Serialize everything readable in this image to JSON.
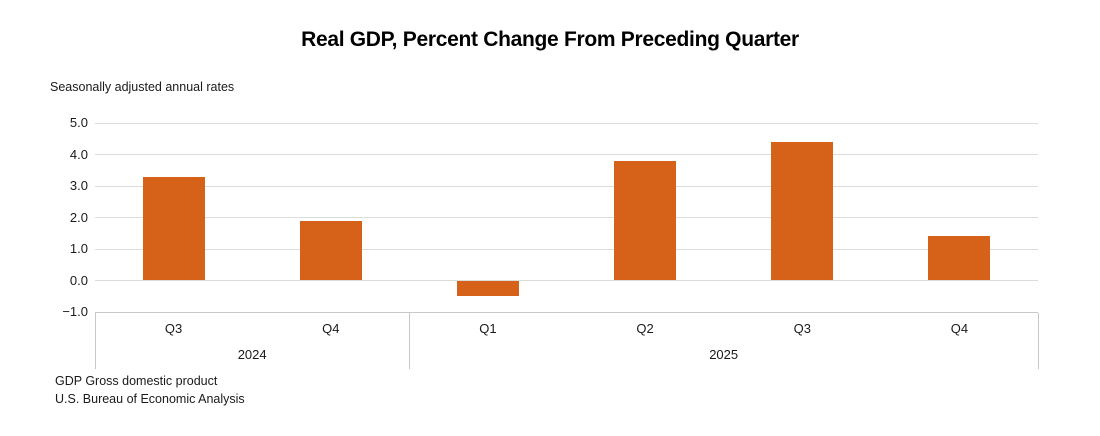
{
  "title": "Real GDP, Percent Change From Preceding Quarter",
  "subtitle": "Seasonally adjusted annual rates",
  "footer": {
    "line1": "GDP Gross domestic product",
    "line2": "U.S. Bureau of Economic Analysis"
  },
  "colors": {
    "bar": "#d6621a",
    "gridline": "#dcdcdc",
    "axis_line": "#c8c8c8",
    "text": "#1a1a1a"
  },
  "chart_data": {
    "type": "bar",
    "title": "Real GDP, Percent Change From Preceding Quarter",
    "subtitle": "Seasonally adjusted annual rates",
    "categories": [
      "Q3",
      "Q4",
      "Q1",
      "Q2",
      "Q3",
      "Q4"
    ],
    "values": [
      3.3,
      1.9,
      -0.5,
      3.8,
      4.4,
      1.4
    ],
    "year_groups": [
      {
        "label": "2024",
        "span": 2
      },
      {
        "label": "2025",
        "span": 4
      }
    ],
    "ylabel": "",
    "xlabel": "",
    "ylim": [
      -1.0,
      5.0
    ],
    "y_ticks": [
      {
        "value": 5.0,
        "label": "5.0"
      },
      {
        "value": 4.0,
        "label": "4.0"
      },
      {
        "value": 3.0,
        "label": "3.0"
      },
      {
        "value": 2.0,
        "label": "2.0"
      },
      {
        "value": 1.0,
        "label": "1.0"
      },
      {
        "value": 0.0,
        "label": "0.0"
      },
      {
        "value": -1.0,
        "label": "−1.0"
      }
    ],
    "grid": true,
    "legend": false,
    "bar_color": "#d6621a"
  }
}
